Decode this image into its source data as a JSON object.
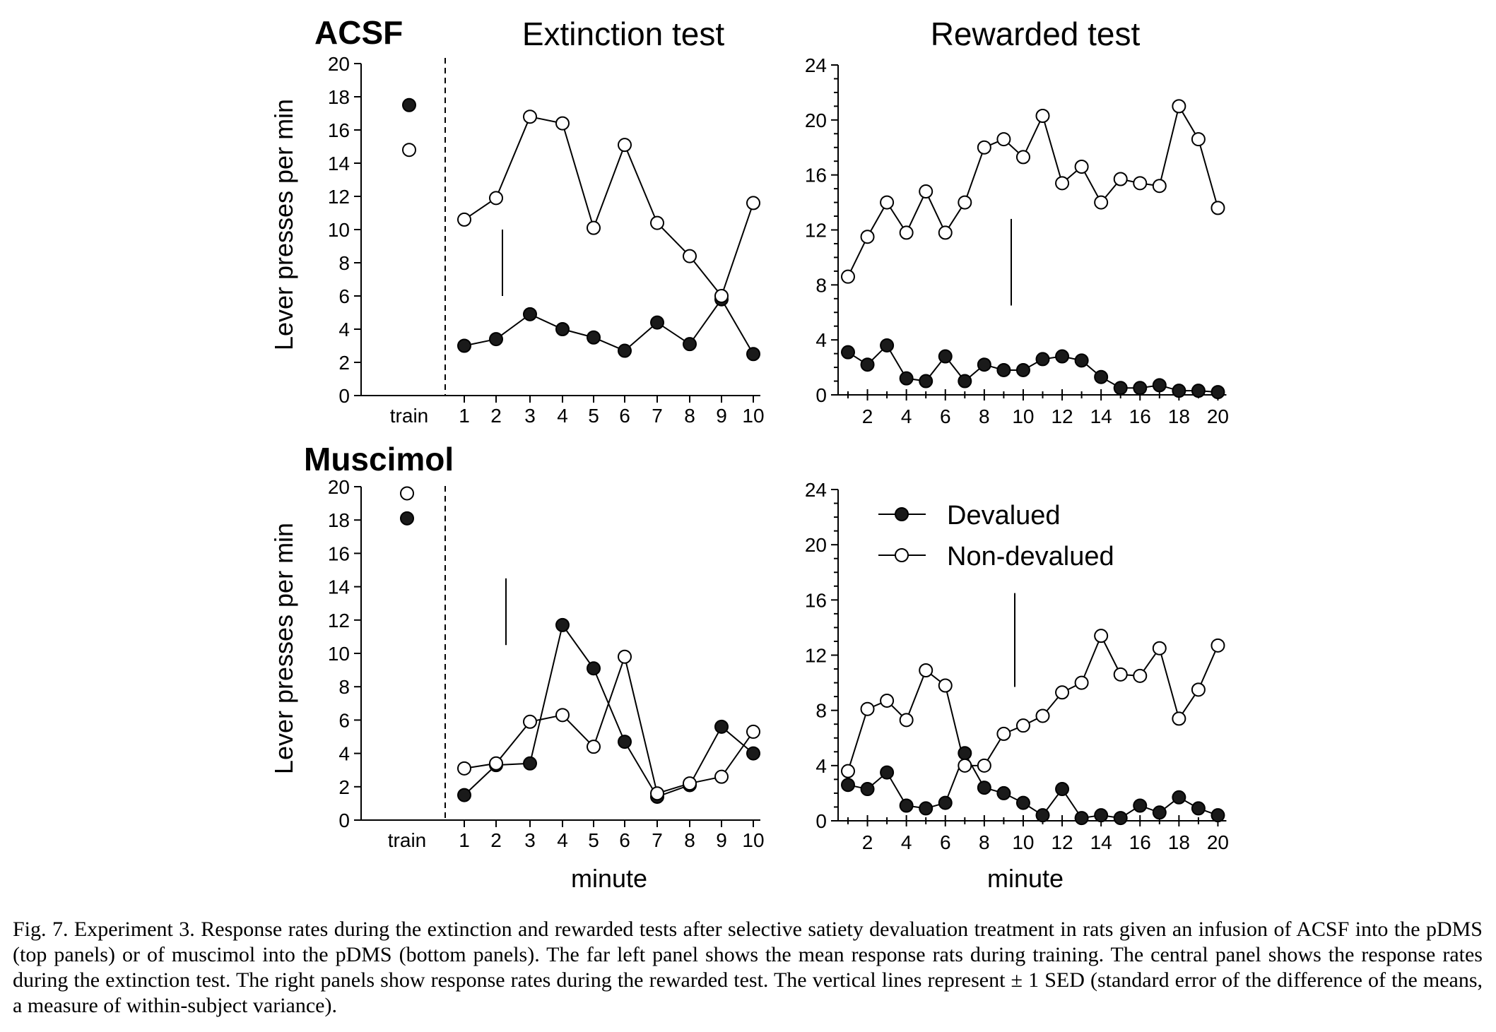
{
  "figure": {
    "row_labels": [
      "ACSF",
      "Muscimol"
    ],
    "column_titles": [
      "Extinction test",
      "Rewarded test"
    ],
    "ylabel": "Lever presses per min",
    "xlabel": "minute",
    "legend": [
      "Devalued",
      "Non-devalued"
    ],
    "caption": "Fig. 7. Experiment 3. Response rates during the extinction and rewarded tests after selective satiety devaluation treatment in rats given an infusion of ACSF into the pDMS (top panels) or of muscimol into the pDMS (bottom panels). The far left panel shows the mean response rats during training. The central panel shows the response rates during the extinction test. The right panels show response rates during the rewarded test. The vertical lines represent ± 1 SED (standard error of the difference of the means, a measure of within-subject variance)."
  },
  "chart_data": [
    {
      "type": "line",
      "title": "Extinction test",
      "group": "ACSF",
      "ylabel": "Lever presses per min",
      "ylim": [
        0,
        20
      ],
      "yticks": [
        0,
        2,
        4,
        6,
        8,
        10,
        12,
        14,
        16,
        18,
        20
      ],
      "train_label": "train",
      "x": [
        1,
        2,
        3,
        4,
        5,
        6,
        7,
        8,
        9,
        10
      ],
      "xtick_labels": [
        "1",
        "2",
        "3",
        "4",
        "5",
        "6",
        "7",
        "8",
        "9",
        "10"
      ],
      "train": {
        "Devalued": 17.5,
        "Non-devalued": 14.8
      },
      "series": [
        {
          "name": "Devalued",
          "marker": "filled",
          "values": [
            3.0,
            3.4,
            4.9,
            4.0,
            3.5,
            2.7,
            4.4,
            3.1,
            5.8,
            2.5
          ]
        },
        {
          "name": "Non-devalued",
          "marker": "open",
          "values": [
            10.6,
            11.9,
            16.8,
            16.4,
            10.1,
            15.1,
            10.4,
            8.4,
            6.0,
            11.6
          ]
        }
      ],
      "sed": [
        6.0,
        10.0
      ]
    },
    {
      "type": "line",
      "title": "Rewarded test",
      "group": "ACSF",
      "ylim": [
        0,
        24
      ],
      "yticks": [
        0,
        4,
        8,
        12,
        16,
        20,
        24
      ],
      "xtick_values": [
        2,
        4,
        6,
        8,
        10,
        12,
        14,
        16,
        18,
        20
      ],
      "x": [
        1,
        2,
        3,
        4,
        5,
        6,
        7,
        8,
        9,
        10,
        11,
        12,
        13,
        14,
        15,
        16,
        17,
        18,
        19,
        20
      ],
      "series": [
        {
          "name": "Devalued",
          "marker": "filled",
          "values": [
            3.1,
            2.2,
            3.6,
            1.2,
            1.0,
            2.8,
            1.0,
            2.2,
            1.8,
            1.8,
            2.6,
            2.8,
            2.5,
            1.3,
            0.5,
            0.5,
            0.7,
            0.3,
            0.3,
            0.2
          ]
        },
        {
          "name": "Non-devalued",
          "marker": "open",
          "values": [
            8.6,
            11.5,
            14.0,
            11.8,
            14.8,
            11.8,
            14.0,
            18.0,
            18.6,
            17.3,
            20.3,
            15.4,
            16.6,
            14.0,
            15.7,
            15.4,
            15.2,
            21.0,
            18.6,
            13.6
          ]
        }
      ],
      "sed": [
        6.5,
        12.8
      ]
    },
    {
      "type": "line",
      "title": "",
      "group": "Muscimol",
      "ylabel": "Lever presses per min",
      "xlabel": "minute",
      "ylim": [
        0,
        20
      ],
      "yticks": [
        0,
        2,
        4,
        6,
        8,
        10,
        12,
        14,
        16,
        18,
        20
      ],
      "train_label": "train",
      "x": [
        1,
        2,
        3,
        4,
        5,
        6,
        7,
        8,
        9,
        10
      ],
      "xtick_labels": [
        "1",
        "2",
        "3",
        "4",
        "5",
        "6",
        "7",
        "8",
        "9",
        "10"
      ],
      "train": {
        "Devalued": 18.1,
        "Non-devalued": 19.6
      },
      "series": [
        {
          "name": "Devalued",
          "marker": "filled",
          "values": [
            1.5,
            3.3,
            3.4,
            11.7,
            9.1,
            4.7,
            1.4,
            2.1,
            5.6,
            4.0
          ]
        },
        {
          "name": "Non-devalued",
          "marker": "open",
          "values": [
            3.1,
            3.4,
            5.9,
            6.3,
            4.4,
            9.8,
            1.6,
            2.2,
            2.6,
            5.3
          ]
        }
      ],
      "sed": [
        10.5,
        14.5
      ]
    },
    {
      "type": "line",
      "title": "",
      "group": "Muscimol",
      "xlabel": "minute",
      "ylim": [
        0,
        24
      ],
      "yticks": [
        0,
        4,
        8,
        12,
        16,
        20,
        24
      ],
      "xtick_values": [
        2,
        4,
        6,
        8,
        10,
        12,
        14,
        16,
        18,
        20
      ],
      "x": [
        1,
        2,
        3,
        4,
        5,
        6,
        7,
        8,
        9,
        10,
        11,
        12,
        13,
        14,
        15,
        16,
        17,
        18,
        19,
        20
      ],
      "legend": [
        "Devalued",
        "Non-devalued"
      ],
      "series": [
        {
          "name": "Devalued",
          "marker": "filled",
          "values": [
            2.6,
            2.3,
            3.5,
            1.1,
            0.9,
            1.3,
            4.9,
            2.4,
            2.0,
            1.3,
            0.4,
            2.3,
            0.2,
            0.4,
            0.2,
            1.1,
            0.6,
            1.7,
            0.9,
            0.4
          ]
        },
        {
          "name": "Non-devalued",
          "marker": "open",
          "values": [
            3.6,
            8.1,
            8.7,
            7.3,
            10.9,
            9.8,
            4.0,
            4.0,
            6.3,
            6.9,
            7.6,
            9.3,
            10.0,
            13.4,
            10.6,
            10.5,
            12.5,
            7.4,
            9.5,
            12.7
          ]
        }
      ],
      "sed": [
        9.7,
        16.5
      ]
    }
  ]
}
